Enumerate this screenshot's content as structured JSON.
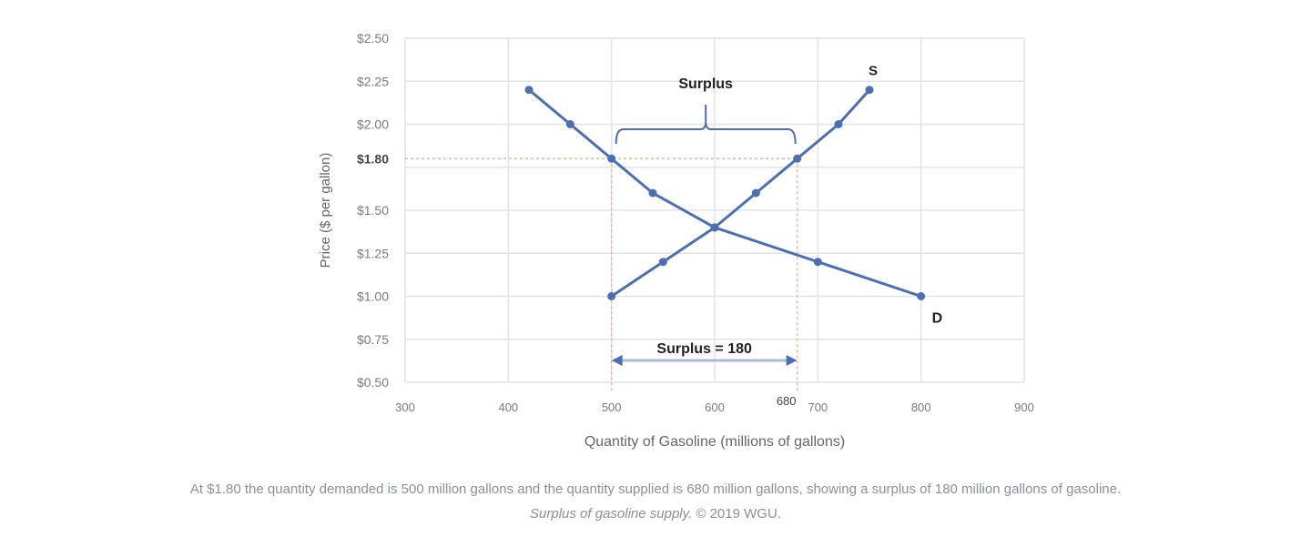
{
  "chart_data": {
    "type": "line",
    "xlabel": "Quantity of Gasoline (millions of gallons)",
    "ylabel": "Price ($ per gallon)",
    "xlim": [
      300,
      900
    ],
    "ylim": [
      0.5,
      2.5
    ],
    "x_ticks": [
      300,
      400,
      500,
      600,
      700,
      800,
      900
    ],
    "x_tick_labels": [
      "300",
      "400",
      "500",
      "600",
      "700",
      "800",
      "900"
    ],
    "y_ticks": [
      2.5,
      2.25,
      2.0,
      1.8,
      1.5,
      1.25,
      1.0,
      0.75,
      0.5
    ],
    "y_tick_labels": [
      "$2.50",
      "$2.25",
      "$2.00",
      "$1.80",
      "$1.50",
      "$1.25",
      "$1.00",
      "$0.75",
      "$0.50"
    ],
    "grid": true,
    "series_color": "#4a6fb5",
    "series": [
      {
        "name": "D",
        "x": [
          420,
          460,
          500,
          540,
          600,
          700,
          800
        ],
        "y": [
          2.2,
          2.0,
          1.8,
          1.6,
          1.4,
          1.2,
          1.0
        ]
      },
      {
        "name": "S",
        "x": [
          500,
          550,
          600,
          640,
          680,
          720,
          750
        ],
        "y": [
          1.0,
          1.2,
          1.4,
          1.6,
          1.8,
          2.0,
          2.2
        ]
      }
    ],
    "reference_lines": {
      "price": 1.8,
      "quantities": [
        500,
        680
      ],
      "color": "#e8b98a"
    },
    "annotations": {
      "surplus_bracket_label": "Surplus",
      "surplus_arrow_label": "Surplus = 180",
      "extra_x_label": "680"
    }
  },
  "caption": {
    "line1": "At $1.80 the quantity demanded is 500 million gallons and the quantity supplied is 680 million gallons, showing a surplus of 180 million gallons of gasoline.",
    "line2_italic": "Surplus of gasoline supply.",
    "line2_rest": " © 2019 WGU."
  }
}
